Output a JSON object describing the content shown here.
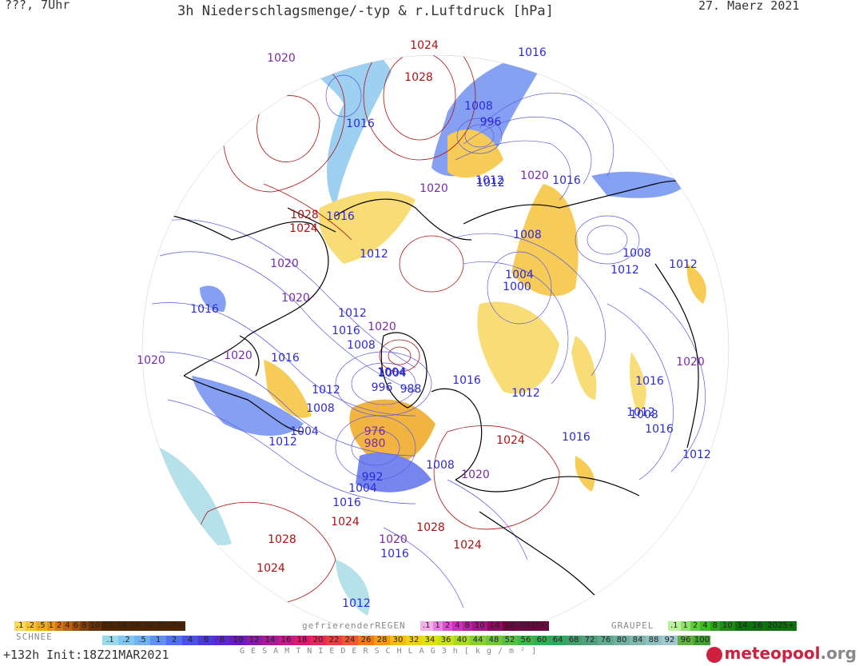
{
  "header": {
    "left": "???, 7Uhr",
    "title": "3h Niederschlagsmenge/-typ & r.Luftdruck [hPa]",
    "date": "27. Maerz 2021"
  },
  "colors": {
    "high_isobar": "#b01010",
    "mid_isobar": "#7a2aa8",
    "low_isobar": "#2a2ad8",
    "coast": "#000000",
    "snow_scale": [
      "#f7d860",
      "#f5c33a",
      "#f0a820",
      "#e59416",
      "#d07a12",
      "#b86410",
      "#9c520c",
      "#80400a",
      "#663008",
      "#4c2404"
    ],
    "rain_scale": [
      "#f0b0e8",
      "#e880dc",
      "#dc50cc",
      "#cc30b8",
      "#b8209c",
      "#a01880",
      "#880c60",
      "#6a0840"
    ],
    "graupel_scale": [
      "#b8f0a0",
      "#90e070",
      "#60cc40",
      "#40b828",
      "#30a020",
      "#208818",
      "#107010"
    ],
    "total_scale": [
      "#98dcec",
      "#80c8f0",
      "#70b0f4",
      "#6090f0",
      "#5070ec",
      "#4a50e4",
      "#4a38d8",
      "#5a28c8"
    ]
  },
  "legend": {
    "snow": {
      "title": "SCHNEE",
      "values": [
        ".1",
        ".2",
        ".5",
        "1",
        "2",
        "4",
        "6",
        "8",
        "10",
        "12",
        "14",
        "16",
        "18",
        "2025+"
      ]
    },
    "freezing_rain": {
      "title": "gefrierenderREGEN",
      "values": [
        ".1",
        "1",
        "2",
        "4",
        "8",
        "10",
        "14",
        "16",
        "2025+"
      ]
    },
    "graupel": {
      "title": "GRAUPEL",
      "values": [
        ".1",
        "1",
        "2",
        "4",
        "8",
        "10",
        "14",
        "16",
        "2025+"
      ]
    },
    "total": {
      "title": "G E S A M T N I E D E R S C H L A G   3 h   [ k g / m ² ]",
      "values": [
        ".1",
        ".2",
        ".5",
        "1",
        "2",
        "4",
        "6",
        "8",
        "10",
        "12",
        "14",
        "16",
        "18",
        "20",
        "22",
        "24",
        "26",
        "28",
        "30",
        "32",
        "34",
        "36",
        "40",
        "44",
        "48",
        "52",
        "56",
        "60",
        "64",
        "68",
        "72",
        "76",
        "80",
        "84",
        "88",
        "92",
        "96",
        "100"
      ]
    }
  },
  "footer": {
    "left": "+132h",
    "init": "Init:18Z21MAR2021",
    "brand": "meteopool",
    "brand_suffix": ".org"
  },
  "isobar_labels": [
    {
      "text": "1020",
      "level": "mid"
    },
    {
      "text": "1024",
      "level": "high"
    },
    {
      "text": "1028",
      "level": "high"
    },
    {
      "text": "1016",
      "level": "low"
    },
    {
      "text": "1016",
      "level": "low"
    },
    {
      "text": "1008",
      "level": "low"
    },
    {
      "text": "996",
      "level": "low"
    },
    {
      "text": "1020",
      "level": "mid"
    },
    {
      "text": "1012",
      "level": "low"
    },
    {
      "text": "1020",
      "level": "mid"
    },
    {
      "text": "1016",
      "level": "low"
    },
    {
      "text": "1012",
      "level": "low"
    },
    {
      "text": "1008",
      "level": "low"
    },
    {
      "text": "1004",
      "level": "low"
    },
    {
      "text": "1028",
      "level": "high"
    },
    {
      "text": "1024",
      "level": "high"
    },
    {
      "text": "1016",
      "level": "low"
    },
    {
      "text": "1020",
      "level": "mid"
    },
    {
      "text": "1012",
      "level": "low"
    },
    {
      "text": "1008",
      "level": "low"
    },
    {
      "text": "1004",
      "level": "low"
    },
    {
      "text": "1000",
      "level": "low"
    },
    {
      "text": "1008",
      "level": "low"
    },
    {
      "text": "1012",
      "level": "low"
    },
    {
      "text": "1012",
      "level": "low"
    },
    {
      "text": "1016",
      "level": "low"
    },
    {
      "text": "1020",
      "level": "mid"
    },
    {
      "text": "1012",
      "level": "low"
    },
    {
      "text": "1016",
      "level": "low"
    },
    {
      "text": "1020",
      "level": "mid"
    },
    {
      "text": "1020",
      "level": "mid"
    },
    {
      "text": "1020",
      "level": "mid"
    },
    {
      "text": "1016",
      "level": "low"
    },
    {
      "text": "1004",
      "level": "low"
    },
    {
      "text": "996",
      "level": "low"
    },
    {
      "text": "988",
      "level": "low"
    },
    {
      "text": "1016",
      "level": "low"
    },
    {
      "text": "1012",
      "level": "low"
    },
    {
      "text": "1012",
      "level": "low"
    },
    {
      "text": "1008",
      "level": "low"
    },
    {
      "text": "976",
      "level": "mid"
    },
    {
      "text": "980",
      "level": "mid"
    },
    {
      "text": "1004",
      "level": "low"
    },
    {
      "text": "1012",
      "level": "low"
    },
    {
      "text": "1016",
      "level": "low"
    },
    {
      "text": "1020",
      "level": "mid"
    },
    {
      "text": "1008",
      "level": "low"
    },
    {
      "text": "1012",
      "level": "low"
    },
    {
      "text": "1016",
      "level": "low"
    },
    {
      "text": "1024",
      "level": "high"
    },
    {
      "text": "1016",
      "level": "low"
    },
    {
      "text": "1008",
      "level": "low"
    },
    {
      "text": "992",
      "level": "low"
    },
    {
      "text": "1004",
      "level": "low"
    },
    {
      "text": "1016",
      "level": "low"
    },
    {
      "text": "1020",
      "level": "mid"
    },
    {
      "text": "1028",
      "level": "high"
    },
    {
      "text": "1024",
      "level": "high"
    },
    {
      "text": "1028",
      "level": "high"
    },
    {
      "text": "1020",
      "level": "mid"
    },
    {
      "text": "1016",
      "level": "low"
    },
    {
      "text": "1024",
      "level": "high"
    },
    {
      "text": "1024",
      "level": "high"
    },
    {
      "text": "1012",
      "level": "low"
    },
    {
      "text": "1012",
      "level": "low"
    }
  ]
}
